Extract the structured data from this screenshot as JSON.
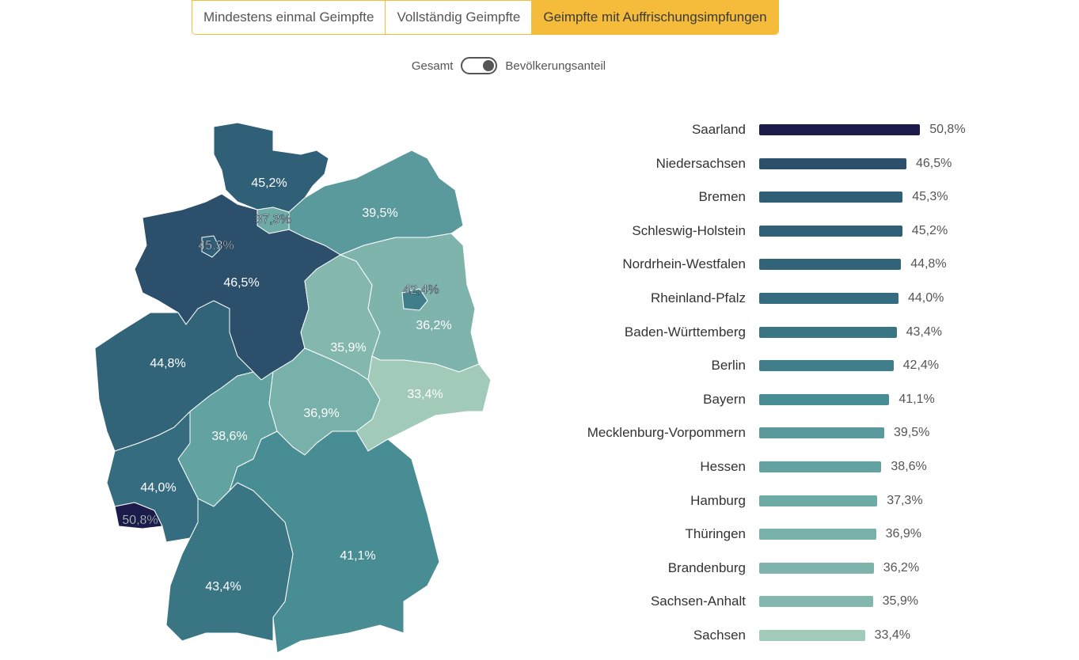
{
  "tabs": [
    "Mindestens einmal Geimpfte",
    "Vollständig Geimpfte",
    "Geimpfte mit Auffrischungsimpfungen"
  ],
  "active_tab": 2,
  "toggle": {
    "left_label": "Gesamt",
    "right_label": "Bevölkerungsanteil",
    "state": "right"
  },
  "chart_data": {
    "type": "bar",
    "orientation": "horizontal",
    "unit": "%",
    "categories": [
      "Saarland",
      "Niedersachsen",
      "Bremen",
      "Schleswig-Holstein",
      "Nordrhein-Westfalen",
      "Rheinland-Pfalz",
      "Baden-Württemberg",
      "Berlin",
      "Bayern",
      "Mecklenburg-Vorpommern",
      "Hessen",
      "Hamburg",
      "Thüringen",
      "Brandenburg",
      "Sachsen-Anhalt",
      "Sachsen"
    ],
    "values": [
      50.8,
      46.5,
      45.3,
      45.2,
      44.8,
      44.0,
      43.4,
      42.4,
      41.1,
      39.5,
      38.6,
      37.3,
      36.9,
      36.2,
      35.9,
      33.4
    ],
    "labels": [
      "50,8%",
      "46,5%",
      "45,3%",
      "45,2%",
      "44,8%",
      "44,0%",
      "43,4%",
      "42,4%",
      "41,1%",
      "39,5%",
      "38,6%",
      "37,3%",
      "36,9%",
      "36,2%",
      "35,9%",
      "33,4%"
    ],
    "colors": [
      "#1d1b4c",
      "#2c4f6c",
      "#2f5e77",
      "#305f78",
      "#326479",
      "#356c7f",
      "#3a7584",
      "#3f7e8a",
      "#488c94",
      "#5a9a9c",
      "#62a2a0",
      "#6eaaa6",
      "#78b0aa",
      "#7fb4ac",
      "#84b7ae",
      "#a2cab8"
    ]
  }
}
